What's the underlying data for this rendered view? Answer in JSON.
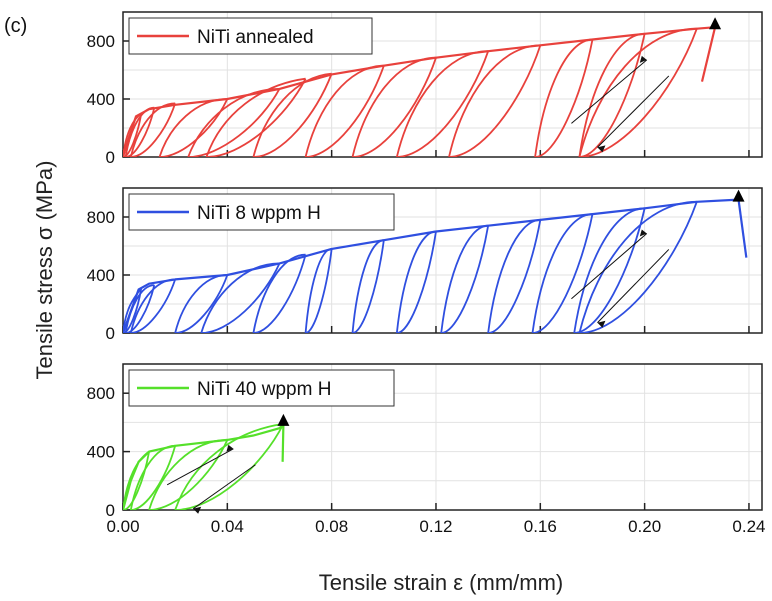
{
  "figure_label": "(c)",
  "chart_data": {
    "type": "line",
    "xlabel": "Tensile strain ε (mm/mm)",
    "ylabel": "Tensile stress σ (MPa)",
    "xlim": [
      0.0,
      0.245
    ],
    "ylim": [
      0,
      1000
    ],
    "x_ticks": [
      "0.00",
      "0.04",
      "0.08",
      "0.12",
      "0.16",
      "0.20",
      "0.24"
    ],
    "x_tick_values": [
      0.0,
      0.04,
      0.08,
      0.12,
      0.16,
      0.2,
      0.24
    ],
    "y_ticks": [
      "0",
      "400",
      "800"
    ],
    "y_tick_values": [
      0,
      400,
      800
    ],
    "grid": true,
    "legend_position": "top-left",
    "panels": [
      {
        "legend": "NiTi annealed",
        "color": "#e8413c",
        "envelope": [
          [
            0.0,
            0
          ],
          [
            0.002,
            120
          ],
          [
            0.005,
            280
          ],
          [
            0.01,
            330
          ],
          [
            0.02,
            360
          ],
          [
            0.04,
            400
          ],
          [
            0.06,
            470
          ],
          [
            0.08,
            570
          ],
          [
            0.1,
            630
          ],
          [
            0.12,
            685
          ],
          [
            0.14,
            730
          ],
          [
            0.16,
            770
          ],
          [
            0.18,
            810
          ],
          [
            0.2,
            850
          ],
          [
            0.22,
            885
          ],
          [
            0.227,
            895
          ]
        ],
        "unload_points": [
          [
            0.007,
            300,
            0.0
          ],
          [
            0.012,
            340,
            0.001
          ],
          [
            0.02,
            370,
            0.003
          ],
          [
            0.04,
            400,
            0.014
          ],
          [
            0.06,
            470,
            0.025
          ],
          [
            0.07,
            540,
            0.032
          ],
          [
            0.08,
            575,
            0.05
          ],
          [
            0.1,
            630,
            0.07
          ],
          [
            0.12,
            685,
            0.088
          ],
          [
            0.14,
            730,
            0.105
          ],
          [
            0.16,
            770,
            0.125
          ],
          [
            0.18,
            810,
            0.158
          ],
          [
            0.2,
            850,
            0.175
          ],
          [
            0.22,
            885,
            0.175
          ]
        ],
        "failure": [
          [
            0.227,
            895
          ],
          [
            0.222,
            520
          ]
        ]
      },
      {
        "legend": "NiTi 8 wppm H",
        "color": "#2f4fe0",
        "envelope": [
          [
            0.0,
            0
          ],
          [
            0.003,
            150
          ],
          [
            0.006,
            300
          ],
          [
            0.01,
            340
          ],
          [
            0.02,
            370
          ],
          [
            0.04,
            400
          ],
          [
            0.06,
            480
          ],
          [
            0.08,
            580
          ],
          [
            0.1,
            640
          ],
          [
            0.12,
            700
          ],
          [
            0.14,
            740
          ],
          [
            0.16,
            780
          ],
          [
            0.18,
            820
          ],
          [
            0.2,
            860
          ],
          [
            0.22,
            905
          ],
          [
            0.236,
            920
          ]
        ],
        "unload_points": [
          [
            0.007,
            310,
            0.0
          ],
          [
            0.012,
            330,
            0.001
          ],
          [
            0.02,
            370,
            0.003
          ],
          [
            0.04,
            400,
            0.02
          ],
          [
            0.06,
            480,
            0.03
          ],
          [
            0.07,
            540,
            0.05
          ],
          [
            0.08,
            580,
            0.07
          ],
          [
            0.1,
            640,
            0.088
          ],
          [
            0.12,
            700,
            0.105
          ],
          [
            0.14,
            740,
            0.122
          ],
          [
            0.16,
            780,
            0.14
          ],
          [
            0.18,
            820,
            0.157
          ],
          [
            0.2,
            860,
            0.173
          ],
          [
            0.22,
            905,
            0.175
          ]
        ],
        "failure": [
          [
            0.236,
            920
          ],
          [
            0.239,
            520
          ]
        ]
      },
      {
        "legend": "NiTi 40 wppm H",
        "color": "#55e02a",
        "envelope": [
          [
            0.0,
            0
          ],
          [
            0.003,
            200
          ],
          [
            0.006,
            330
          ],
          [
            0.01,
            400
          ],
          [
            0.02,
            440
          ],
          [
            0.04,
            480
          ],
          [
            0.05,
            510
          ],
          [
            0.06,
            560
          ],
          [
            0.0615,
            590
          ]
        ],
        "unload_points": [
          [
            0.01,
            400,
            0.0
          ],
          [
            0.02,
            440,
            0.003
          ],
          [
            0.04,
            480,
            0.01
          ],
          [
            0.0615,
            590,
            0.02
          ]
        ],
        "failure": [
          [
            0.0615,
            590
          ],
          [
            0.0612,
            330
          ]
        ]
      }
    ]
  }
}
